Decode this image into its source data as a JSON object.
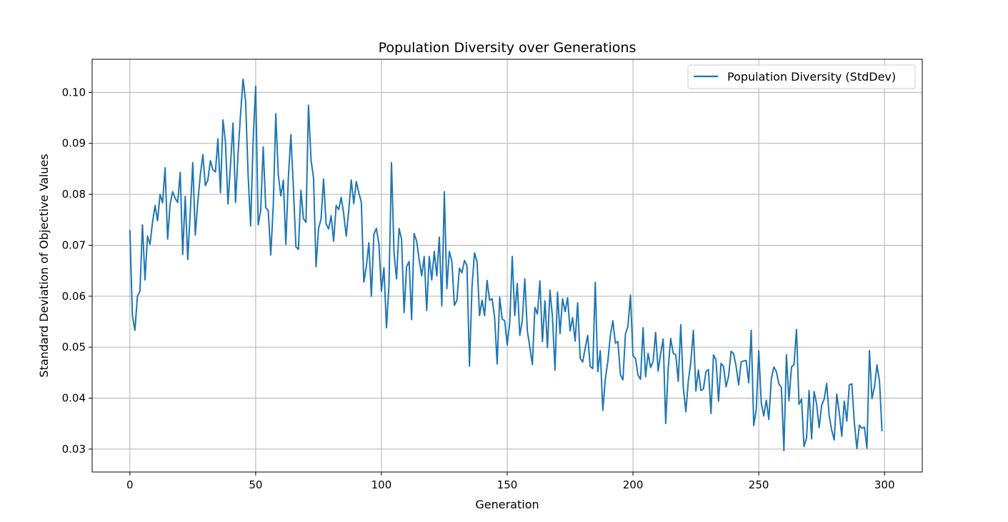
{
  "chart_data": {
    "type": "line",
    "title": "Population Diversity over Generations",
    "xlabel": "Generation",
    "ylabel": "Standard Deviation of Objective Values",
    "xlim": [
      -15,
      315
    ],
    "ylim": [
      0.0255,
      0.1065
    ],
    "xticks": [
      0,
      50,
      100,
      150,
      200,
      250,
      300
    ],
    "yticks": [
      0.03,
      0.04,
      0.05,
      0.06,
      0.07,
      0.08,
      0.09,
      0.1
    ],
    "ytick_labels": [
      "0.03",
      "0.04",
      "0.05",
      "0.06",
      "0.07",
      "0.08",
      "0.09",
      "0.10"
    ],
    "grid": true,
    "legend_position": "top-right",
    "colors": {
      "series": "#1f77b4",
      "grid": "#b0b0b0",
      "axis": "#000000"
    },
    "series": [
      {
        "name": "Population Diversity (StdDev)",
        "x_start": 0,
        "x_step": 1,
        "values": [
          0.073,
          0.0562,
          0.0533,
          0.06,
          0.061,
          0.074,
          0.0632,
          0.0718,
          0.0702,
          0.0745,
          0.0778,
          0.0748,
          0.08,
          0.0783,
          0.0852,
          0.0712,
          0.0781,
          0.0805,
          0.0792,
          0.0784,
          0.0843,
          0.0682,
          0.0796,
          0.0672,
          0.0765,
          0.0862,
          0.072,
          0.0785,
          0.0838,
          0.0878,
          0.0817,
          0.0828,
          0.0866,
          0.0848,
          0.0844,
          0.0909,
          0.0803,
          0.0946,
          0.0902,
          0.0781,
          0.0858,
          0.094,
          0.0784,
          0.0879,
          0.0958,
          0.1026,
          0.0983,
          0.0838,
          0.0738,
          0.0905,
          0.1012,
          0.074,
          0.0768,
          0.0893,
          0.0774,
          0.0768,
          0.0681,
          0.0778,
          0.0958,
          0.0838,
          0.0797,
          0.0828,
          0.0702,
          0.0832,
          0.0917,
          0.0812,
          0.0697,
          0.0692,
          0.0808,
          0.0752,
          0.0745,
          0.0975,
          0.0868,
          0.0832,
          0.0658,
          0.0733,
          0.0752,
          0.083,
          0.0742,
          0.0732,
          0.0758,
          0.0708,
          0.0778,
          0.077,
          0.0794,
          0.0762,
          0.0718,
          0.0768,
          0.0828,
          0.0782,
          0.0825,
          0.0803,
          0.0785,
          0.0628,
          0.0658,
          0.0705,
          0.06,
          0.0722,
          0.0733,
          0.0702,
          0.061,
          0.0656,
          0.0538,
          0.0622,
          0.0862,
          0.0685,
          0.0634,
          0.0733,
          0.0712,
          0.0568,
          0.0658,
          0.0668,
          0.0554,
          0.0723,
          0.0708,
          0.0672,
          0.064,
          0.0678,
          0.0572,
          0.0678,
          0.0632,
          0.0688,
          0.064,
          0.0716,
          0.0581,
          0.0805,
          0.0615,
          0.0688,
          0.0668,
          0.0582,
          0.0592,
          0.0655,
          0.0646,
          0.067,
          0.066,
          0.0463,
          0.0618,
          0.0685,
          0.0668,
          0.0562,
          0.0592,
          0.0562,
          0.0631,
          0.0592,
          0.0595,
          0.0558,
          0.0467,
          0.0598,
          0.0555,
          0.0552,
          0.0504,
          0.0548,
          0.0678,
          0.0562,
          0.0625,
          0.0523,
          0.0553,
          0.0634,
          0.0532,
          0.05,
          0.0466,
          0.0578,
          0.0565,
          0.063,
          0.0511,
          0.0591,
          0.0499,
          0.0612,
          0.0558,
          0.0455,
          0.0608,
          0.0527,
          0.0595,
          0.057,
          0.0597,
          0.0532,
          0.0558,
          0.0512,
          0.0587,
          0.0478,
          0.0471,
          0.0498,
          0.0523,
          0.0462,
          0.0458,
          0.0627,
          0.0452,
          0.0493,
          0.0376,
          0.0437,
          0.0472,
          0.0523,
          0.0552,
          0.0508,
          0.0511,
          0.0446,
          0.0436,
          0.0526,
          0.0541,
          0.0602,
          0.0483,
          0.0478,
          0.0445,
          0.0437,
          0.0538,
          0.0442,
          0.0488,
          0.046,
          0.0472,
          0.0529,
          0.0453,
          0.0488,
          0.0516,
          0.035,
          0.0458,
          0.0517,
          0.0488,
          0.0485,
          0.0433,
          0.0544,
          0.0421,
          0.0373,
          0.0434,
          0.0471,
          0.0533,
          0.0414,
          0.0455,
          0.0415,
          0.0418,
          0.0452,
          0.0456,
          0.037,
          0.0485,
          0.0475,
          0.0394,
          0.0468,
          0.0462,
          0.0422,
          0.0443,
          0.0492,
          0.0487,
          0.0462,
          0.0426,
          0.0471,
          0.0473,
          0.0474,
          0.043,
          0.0533,
          0.0346,
          0.0378,
          0.0493,
          0.0391,
          0.0365,
          0.0396,
          0.0358,
          0.0438,
          0.0461,
          0.0452,
          0.0428,
          0.0421,
          0.0297,
          0.0485,
          0.0395,
          0.0461,
          0.0466,
          0.0535,
          0.0388,
          0.0398,
          0.0305,
          0.0322,
          0.0415,
          0.032,
          0.0413,
          0.0388,
          0.0342,
          0.0386,
          0.0398,
          0.0429,
          0.0365,
          0.0337,
          0.0318,
          0.0408,
          0.0372,
          0.0325,
          0.0394,
          0.0355,
          0.0426,
          0.0428,
          0.0352,
          0.0301,
          0.0347,
          0.0341,
          0.0343,
          0.0302,
          0.0493,
          0.0399,
          0.0422,
          0.0465,
          0.0433,
          0.0335
        ]
      }
    ]
  }
}
